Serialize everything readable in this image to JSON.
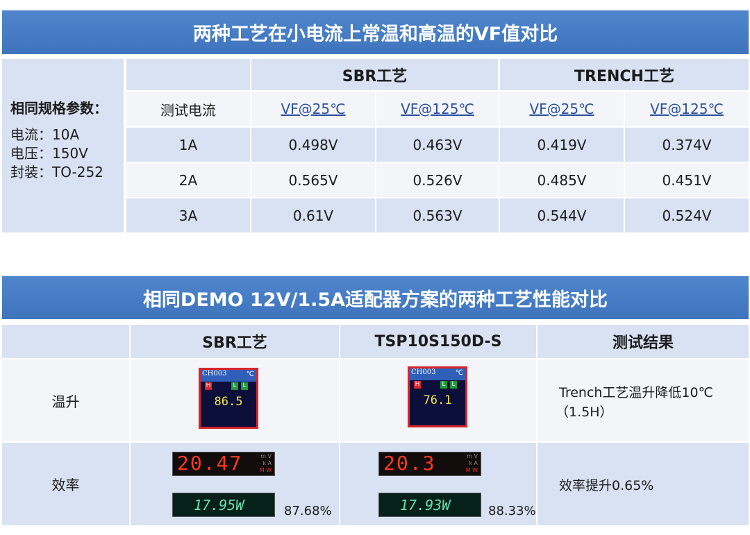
{
  "table1": {
    "title": "两种工艺在小电流上常温和高温的VF值对比",
    "specs": {
      "heading": "相同规格参数：",
      "lines": [
        "电流：10A",
        "电压：150V",
        "封装：TO-252"
      ]
    },
    "groups": [
      "SBR工艺",
      "TRENCH工艺"
    ],
    "columns": [
      "测试电流",
      "VF@25℃",
      "VF@125℃",
      "VF@25℃",
      "VF@125℃"
    ],
    "rows": [
      [
        "1A",
        "0.498V",
        "0.463V",
        "0.419V",
        "0.374V"
      ],
      [
        "2A",
        "0.565V",
        "0.526V",
        "0.485V",
        "0.451V"
      ],
      [
        "3A",
        "0.61V",
        "0.563V",
        "0.544V",
        "0.524V"
      ]
    ]
  },
  "table2": {
    "title": "相同DEMO 12V/1.5A适配器方案的两种工艺性能对比",
    "columns": [
      "SBR工艺",
      "TSP10S150D-S",
      "测试结果"
    ],
    "temperature": {
      "label": "温升",
      "cells": [
        {
          "channel": "CH003",
          "unit": "℃",
          "flags": [
            "H",
            "L",
            "L"
          ],
          "reading": "86.5"
        },
        {
          "channel": "CH003",
          "unit": "℃",
          "flags": [
            "H",
            "L",
            "L"
          ],
          "reading": "76.1"
        }
      ],
      "result": [
        "Trench工艺温升降低10℃",
        "（1.5H）"
      ]
    },
    "efficiency": {
      "label": "效率",
      "units": [
        "m V",
        "k A",
        "M W"
      ],
      "cells": [
        {
          "input": "20.47",
          "output": "17.95W",
          "efficiency": "87.68%"
        },
        {
          "input": "20.3",
          "output": "17.93W",
          "efficiency": "88.33%"
        }
      ],
      "result": [
        "效率提升0.65%"
      ]
    }
  }
}
